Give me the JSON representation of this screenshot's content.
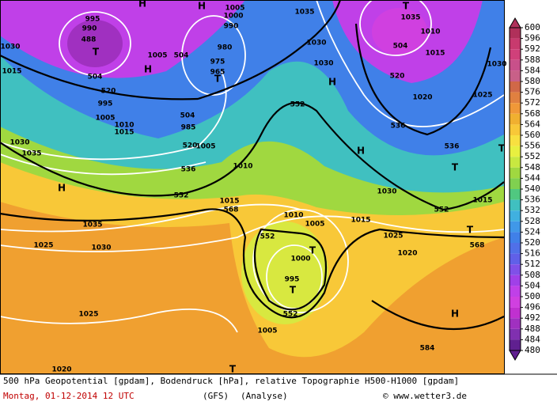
{
  "map": {
    "labels": [
      "H",
      "H",
      "995",
      "990",
      "488",
      "T",
      "504",
      "H",
      "1005",
      "504",
      "1000",
      "1005",
      "990",
      "980",
      "975",
      "965",
      "T",
      "1030",
      "1015",
      "520",
      "995",
      "1005",
      "1010",
      "1015",
      "504",
      "985",
      "520",
      "1005",
      "1030",
      "1035",
      "536",
      "H",
      "552",
      "1010",
      "1015",
      "568",
      "552",
      "1030",
      "1035",
      "H",
      "1030",
      "1035",
      "T",
      "504",
      "1010",
      "1015",
      "520",
      "1020",
      "1025",
      "1030",
      "536",
      "H",
      "536",
      "T",
      "T",
      "1030",
      "552",
      "1015",
      "T",
      "568",
      "1025",
      "1020",
      "1015",
      "1010",
      "1005",
      "552",
      "T",
      "1000",
      "995",
      "T",
      "552",
      "1005",
      "1035",
      "1030",
      "1025",
      "1025",
      "1020",
      "T",
      "H",
      "584"
    ]
  },
  "legend": {
    "ticks": [
      600,
      596,
      592,
      588,
      584,
      580,
      576,
      572,
      568,
      564,
      560,
      556,
      552,
      548,
      544,
      540,
      536,
      532,
      528,
      524,
      520,
      516,
      512,
      508,
      504,
      500,
      496,
      492,
      488,
      484,
      480
    ],
    "colors": [
      "#b0305a",
      "#c83a6e",
      "#d0407a",
      "#c8508a",
      "#c86088",
      "#d06848",
      "#e08040",
      "#f09838",
      "#f0b030",
      "#f8c838",
      "#f8e040",
      "#e8f040",
      "#c8e840",
      "#a0d840",
      "#80d050",
      "#50c880",
      "#40c0c0",
      "#40b0e0",
      "#4098e8",
      "#4080e8",
      "#5070e8",
      "#6060e8",
      "#8050e8",
      "#a040e8",
      "#c040e8",
      "#d040e0",
      "#c030d0",
      "#a030c0",
      "#8030b0",
      "#602090"
    ]
  },
  "footer": {
    "line1": "500 hPa Geopotential [gpdam], Bodendruck [hPa], relative Topographie H500-H1000 [gpdam]",
    "date": "Montag, 01-12-2014  12 UTC",
    "model": "(GFS)",
    "run": "(Analyse)",
    "credit": "© www.wetter3.de"
  }
}
